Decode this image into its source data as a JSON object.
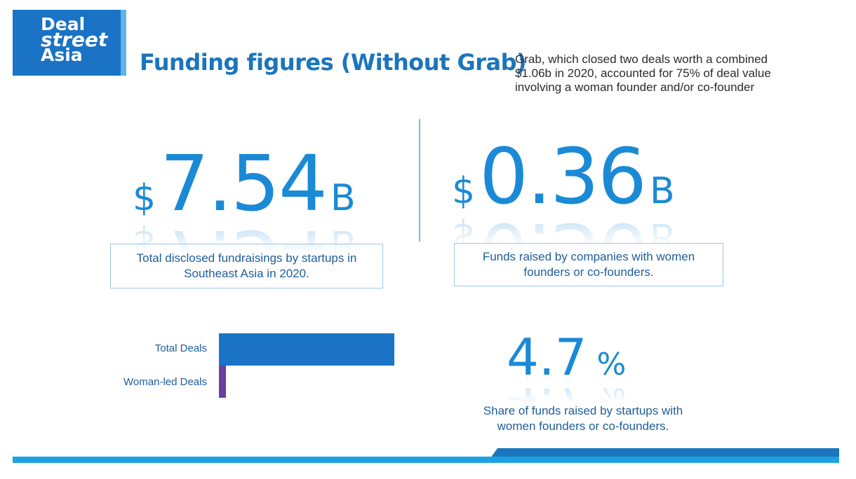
{
  "logo": {
    "line1": "Deal",
    "line2": "street",
    "line3": "Asia"
  },
  "header": {
    "title": "Funding figures (Without Grab)",
    "note": "Grab, which closed two deals worth a combined $1.06b in 2020, accounted for 75% of deal value involving a woman founder and/or co-founder"
  },
  "stats": {
    "total": {
      "currency": "$",
      "value": "7.54",
      "unit": "B",
      "caption": "Total disclosed fundraisings by startups in Southeast Asia in 2020."
    },
    "women": {
      "currency": "$",
      "value": "0.36",
      "unit": "B",
      "caption": "Funds raised by companies with women founders or co-founders."
    },
    "share": {
      "value": "4.7",
      "unit": "%",
      "caption": "Share of funds raised by startups with women founders or co-founders."
    }
  },
  "colors": {
    "primary": "#1b75bc",
    "stat": "#1a8ad6",
    "total_bar": "#1a73c4",
    "woman_bar": "#6b3fa0",
    "accent": "#1da1e2"
  },
  "chart_data": {
    "type": "bar",
    "orientation": "horizontal",
    "categories": [
      "Total Deals",
      "Woman-led Deals"
    ],
    "values": [
      100,
      4
    ],
    "value_unit": "relative length (no values printed)",
    "colors": [
      "#1a73c4",
      "#6b3fa0"
    ]
  }
}
